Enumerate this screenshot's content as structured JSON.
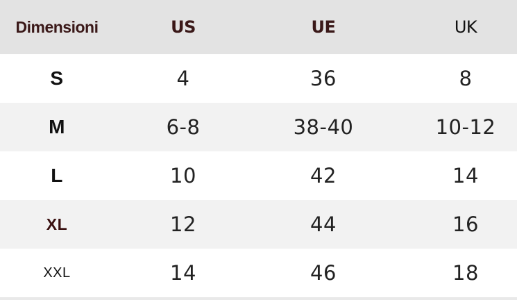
{
  "table": {
    "header": [
      "Dimensioni",
      "US",
      "UE",
      "UK"
    ],
    "rows": [
      [
        "S",
        "4",
        "36",
        "8"
      ],
      [
        "M",
        "6-8",
        "38-40",
        "10-12"
      ],
      [
        "L",
        "10",
        "42",
        "14"
      ],
      [
        "XL",
        "12",
        "44",
        "16"
      ],
      [
        "XXL",
        "14",
        "46",
        "18"
      ]
    ]
  }
}
